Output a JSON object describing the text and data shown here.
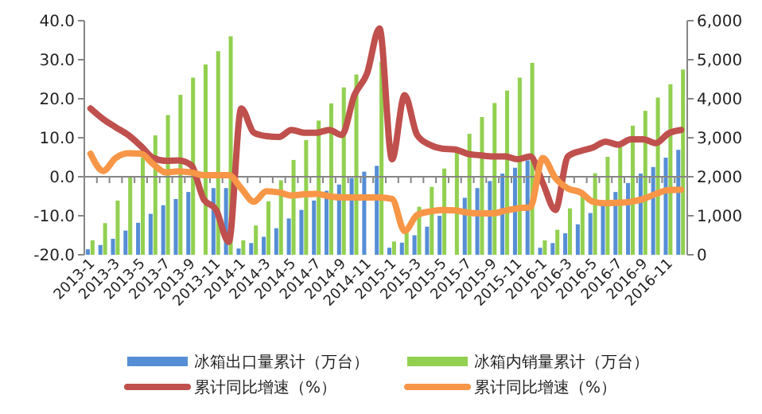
{
  "chart_data": {
    "type": "bar",
    "categories": [
      "2013-1",
      null,
      "2013-3",
      null,
      "2013-5",
      null,
      "2013-7",
      null,
      "2013-9",
      null,
      "2013-11",
      null,
      "2014-1",
      null,
      "2014-3",
      null,
      "2014-5",
      null,
      "2014-7",
      null,
      "2014-9",
      null,
      "2014-11",
      null,
      "2015-1",
      null,
      "2015-3",
      null,
      "2015-5",
      null,
      "2015-7",
      null,
      "2015-9",
      null,
      "2015-11",
      null,
      "2016-1",
      null,
      "2016-3",
      null,
      "2016-5",
      null,
      "2016-7",
      null,
      "2016-9",
      null,
      "2016-11",
      null
    ],
    "series": [
      {
        "name": "冰箱出口量累计（万台）",
        "color": "#558ed5",
        "axis": "y2",
        "values": [
          140,
          250,
          410,
          620,
          820,
          1050,
          1270,
          1430,
          1610,
          null,
          1710,
          1710,
          160,
          300,
          460,
          680,
          930,
          1150,
          1390,
          1640,
          1800,
          1970,
          2130,
          2280,
          180,
          310,
          500,
          720,
          1000,
          null,
          1460,
          1710,
          1890,
          2080,
          2230,
          2420,
          180,
          300,
          550,
          780,
          1070,
          1300,
          1610,
          1840,
          2080,
          2250,
          2490,
          2690
        ]
      },
      {
        "name": "冰箱内销量累计（万台）",
        "color": "#92d050",
        "axis": "y2",
        "values": [
          370,
          810,
          1390,
          1980,
          2490,
          3060,
          3580,
          4100,
          4540,
          4880,
          5220,
          5600,
          370,
          750,
          1370,
          1910,
          2430,
          2940,
          3440,
          3880,
          4290,
          4620,
          null,
          4950,
          340,
          620,
          1230,
          1740,
          2210,
          2650,
          3100,
          3530,
          3890,
          4210,
          4540,
          4920,
          370,
          640,
          1190,
          1570,
          2090,
          2510,
          2760,
          3310,
          3690,
          4030,
          4370,
          4750
        ]
      },
      {
        "name": "累计同比增速（%）",
        "type": "line",
        "color": "#c0504d",
        "values": [
          17.5,
          14.8,
          12.7,
          10.7,
          7.9,
          4.8,
          4.1,
          4.2,
          3.0,
          -5.7,
          -8.5,
          -16.7,
          17.5,
          11.3,
          10.4,
          10.2,
          12.0,
          11.3,
          11.3,
          12.0,
          10.7,
          20.9,
          26.4,
          38.0,
          4.5,
          20.9,
          10.7,
          8.2,
          7.2,
          7.0,
          5.9,
          5.5,
          5.2,
          5.2,
          4.5,
          5.2,
          -1.6,
          -8.5,
          5.2,
          6.6,
          7.5,
          9.0,
          8.2,
          9.6,
          9.6,
          8.6,
          11.1,
          12.0
        ]
      },
      {
        "name": "累计同比增速（%）",
        "type": "line",
        "color": "#f79646",
        "values": [
          5.9,
          1.5,
          4.8,
          6.0,
          5.9,
          3.2,
          1.1,
          1.4,
          1.1,
          0.4,
          0.4,
          0.4,
          -3.0,
          -6.4,
          -3.7,
          -4.0,
          -4.8,
          -4.5,
          -4.4,
          -5.0,
          -5.3,
          -5.3,
          -5.3,
          -5.3,
          -5.7,
          -13.9,
          -9.8,
          -8.9,
          -8.5,
          -8.6,
          -9.2,
          -9.4,
          -9.4,
          -8.7,
          -8.1,
          -7.8,
          4.8,
          -0.3,
          -3.0,
          -4.0,
          -6.4,
          -6.8,
          -6.7,
          -6.4,
          -5.7,
          -4.4,
          -3.4,
          -3.3
        ]
      }
    ],
    "ylim": [
      -20,
      40
    ],
    "yticks": [
      {
        "value": -20,
        "label": "-20.0"
      },
      {
        "value": -10,
        "label": "-10.0"
      },
      {
        "value": 0,
        "label": "0.0"
      },
      {
        "value": 10,
        "label": "10.0"
      },
      {
        "value": 20,
        "label": "20.0"
      },
      {
        "value": 30,
        "label": "30.0"
      },
      {
        "value": 40,
        "label": "40.0"
      }
    ],
    "y2lim": [
      0,
      6000
    ],
    "y2ticks": [
      0,
      {
        "value": 1000,
        "label": "1,000"
      },
      {
        "value": 2000,
        "label": "2,000"
      },
      {
        "value": 3000,
        "label": "3,000"
      },
      {
        "value": 4000,
        "label": "4,000"
      },
      {
        "value": 5000,
        "label": "5,000"
      },
      {
        "value": 6000,
        "label": "6,000"
      }
    ],
    "legend": "bottom"
  }
}
